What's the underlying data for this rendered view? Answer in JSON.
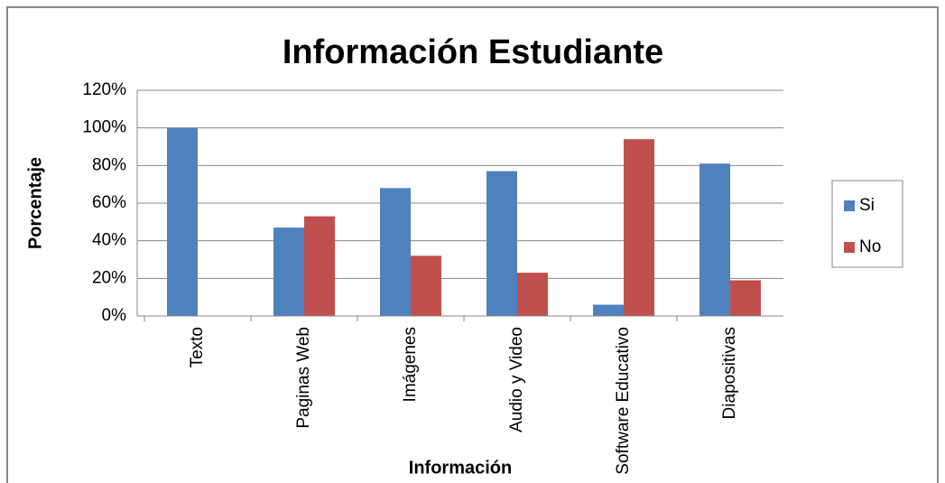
{
  "chart_data": {
    "type": "bar",
    "title": "Información Estudiante",
    "x_label": "Información",
    "y_label": "Porcentaje",
    "categories": [
      "Texto",
      "Paginas Web",
      "Imágenes",
      "Audio y Video",
      "Software Educativo",
      "Diapositivas"
    ],
    "series": [
      {
        "name": "Si",
        "color": "#4f81bd",
        "values": [
          100,
          47,
          68,
          77,
          6,
          81
        ]
      },
      {
        "name": "No",
        "color": "#c0504d",
        "values": [
          0,
          53,
          32,
          23,
          94,
          19
        ]
      }
    ],
    "ylim": [
      0,
      120
    ],
    "yticks": [
      {
        "value": 0,
        "label": "0%"
      },
      {
        "value": 20,
        "label": "20%"
      },
      {
        "value": 40,
        "label": "40%"
      },
      {
        "value": 60,
        "label": "60%"
      },
      {
        "value": 80,
        "label": "80%"
      },
      {
        "value": 100,
        "label": "100%"
      },
      {
        "value": 120,
        "label": "120%"
      }
    ],
    "grid": true,
    "legend": "right"
  }
}
